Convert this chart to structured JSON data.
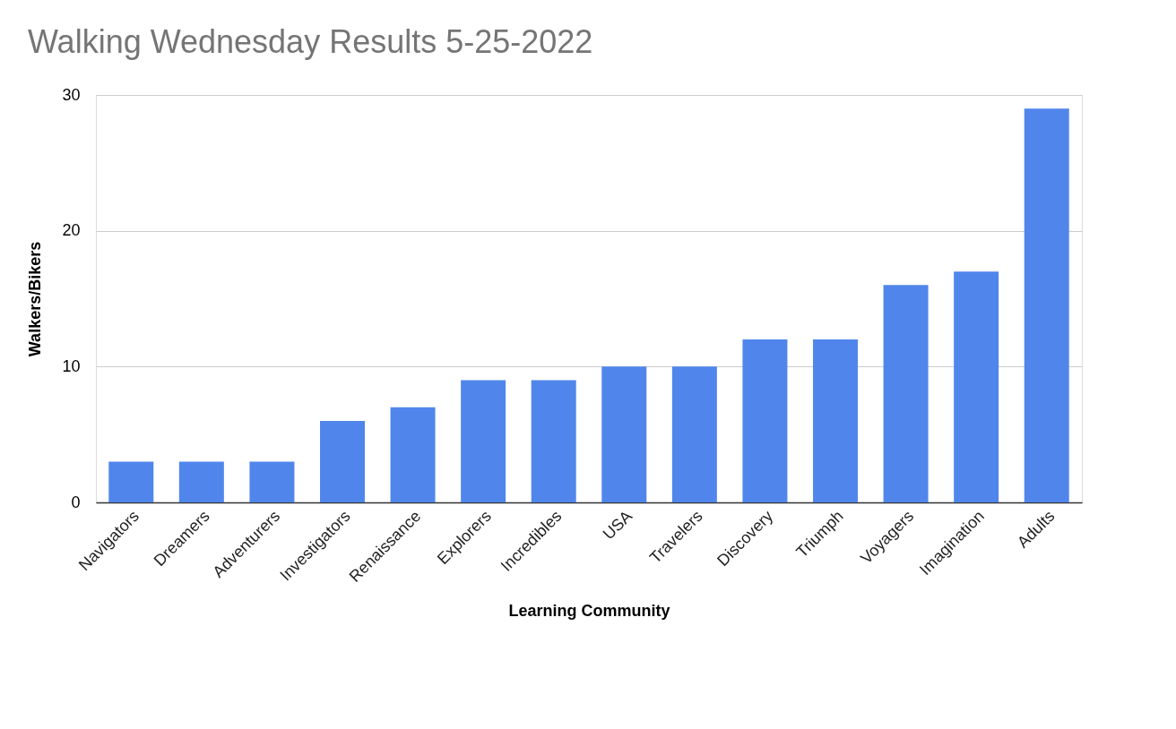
{
  "chart_data": {
    "type": "bar",
    "title": "Walking Wednesday Results  5-25-2022",
    "xlabel": "Learning Community",
    "ylabel": "Walkers/Bikers",
    "categories": [
      "Navigators",
      "Dreamers",
      "Adventurers",
      "Investigators",
      "Renaissance",
      "Explorers",
      "Incredibles",
      "USA",
      "Travelers",
      "Discovery",
      "Triumph",
      "Voyagers",
      "Imagination",
      "Adults"
    ],
    "values": [
      3,
      3,
      3,
      6,
      7,
      9,
      9,
      10,
      10,
      12,
      12,
      16,
      17,
      29
    ],
    "color": "#5086ec",
    "ylim": [
      0,
      30
    ],
    "yticks": [
      0,
      10,
      20,
      30
    ],
    "grid": "y"
  }
}
